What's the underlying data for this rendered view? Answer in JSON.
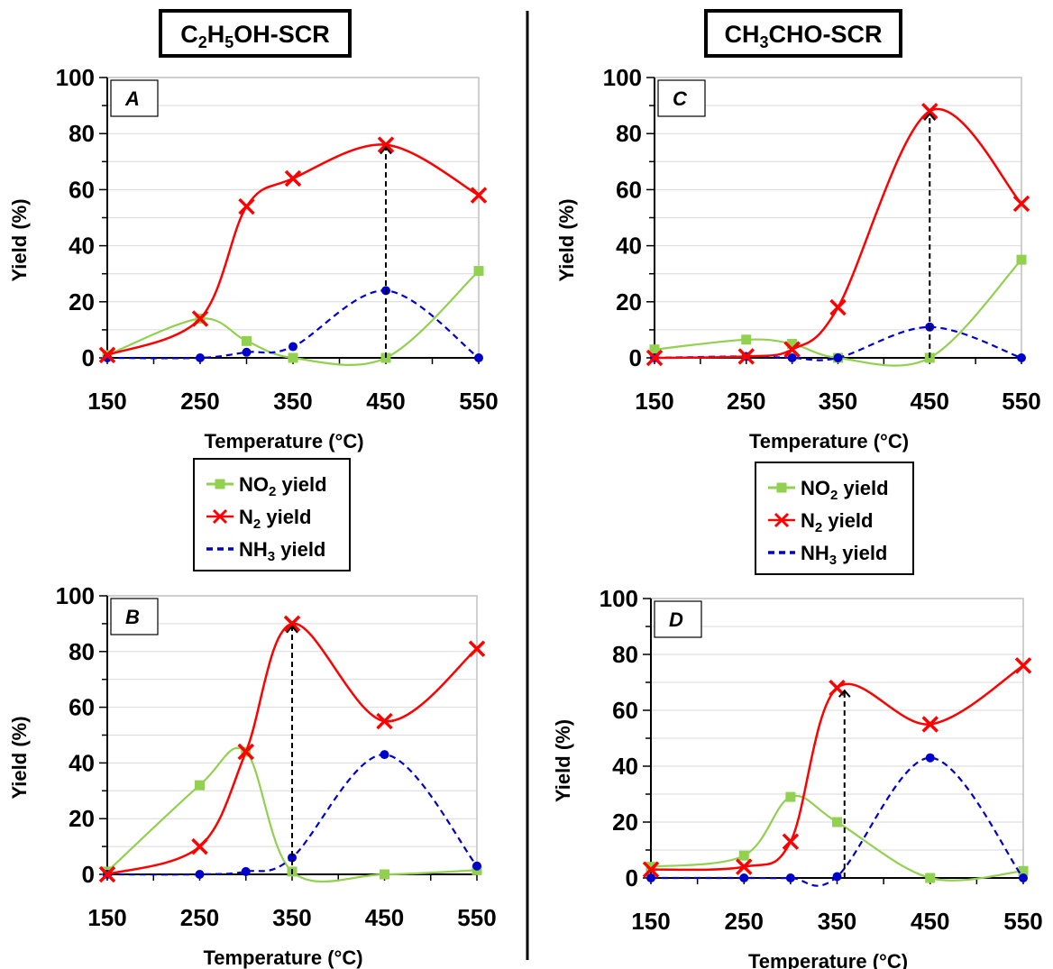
{
  "columns": [
    {
      "title_main": "C",
      "title_sub1": "2",
      "title_mid": "H",
      "title_sub2": "5",
      "title_end": "OH-SCR"
    },
    {
      "title_main": "CH",
      "title_sub1": "3",
      "title_mid": "CHO-SCR",
      "title_sub2": "",
      "title_end": ""
    }
  ],
  "legend": {
    "entries": [
      {
        "prefix": "NO",
        "sub": "2",
        "suffix": " yield",
        "color": "#92d050"
      },
      {
        "prefix": "N",
        "sub": "2",
        "suffix": " yield",
        "color": "#ff0000"
      },
      {
        "prefix": "NH",
        "sub": "3",
        "suffix": " yield",
        "color": "#0000cc"
      }
    ]
  },
  "colors": {
    "no2": "#92d050",
    "n2": "#ff0000",
    "nh3": "#0000cc",
    "arrow": "#000000"
  },
  "chart_data": [
    {
      "id": "A",
      "type": "line",
      "panel_label": "A",
      "xlabel": "Temperature (°C)",
      "ylabel": "Yield (%)",
      "x": [
        150,
        250,
        300,
        350,
        450,
        550
      ],
      "xticks": [
        150,
        250,
        350,
        450,
        550
      ],
      "yticks": [
        0,
        20,
        40,
        60,
        80,
        100
      ],
      "xlim": [
        150,
        550
      ],
      "ylim": [
        0,
        100
      ],
      "series": [
        {
          "name": "NO2 yield",
          "key": "no2",
          "values": [
            1,
            14,
            6,
            0,
            0,
            31
          ]
        },
        {
          "name": "N2 yield",
          "key": "n2",
          "values": [
            1,
            14,
            54,
            64,
            76,
            58
          ]
        },
        {
          "name": "NH3 yield",
          "key": "nh3",
          "values": [
            0,
            0,
            2,
            4,
            24,
            0
          ]
        }
      ],
      "arrow": {
        "x": 450,
        "from": 0,
        "to": 76
      }
    },
    {
      "id": "B",
      "type": "line",
      "panel_label": "B",
      "xlabel": "Temperature (°C)",
      "ylabel": "Yield (%)",
      "x": [
        150,
        250,
        300,
        350,
        450,
        550
      ],
      "xticks": [
        150,
        250,
        350,
        450,
        550
      ],
      "yticks": [
        0,
        20,
        40,
        60,
        80,
        100
      ],
      "xlim": [
        150,
        550
      ],
      "ylim": [
        0,
        100
      ],
      "series": [
        {
          "name": "NO2 yield",
          "key": "no2",
          "values": [
            1,
            32,
            44,
            1,
            0,
            1.5
          ]
        },
        {
          "name": "N2 yield",
          "key": "n2",
          "values": [
            0,
            10,
            44,
            90,
            55,
            81
          ]
        },
        {
          "name": "NH3 yield",
          "key": "nh3",
          "values": [
            0,
            0,
            1,
            6,
            43,
            3
          ]
        }
      ],
      "arrow": {
        "x": 350,
        "from": 0,
        "to": 90
      }
    },
    {
      "id": "C",
      "type": "line",
      "panel_label": "C",
      "xlabel": "Temperature (°C)",
      "ylabel": "Yield (%)",
      "x": [
        150,
        250,
        300,
        350,
        450,
        550
      ],
      "xticks": [
        150,
        250,
        350,
        450,
        550
      ],
      "yticks": [
        0,
        20,
        40,
        60,
        80,
        100
      ],
      "xlim": [
        150,
        550
      ],
      "ylim": [
        0,
        100
      ],
      "series": [
        {
          "name": "NO2 yield",
          "key": "no2",
          "values": [
            3,
            6.5,
            5,
            0,
            0,
            35
          ]
        },
        {
          "name": "N2 yield",
          "key": "n2",
          "values": [
            0,
            0.5,
            3,
            18,
            88,
            55
          ]
        },
        {
          "name": "NH3 yield",
          "key": "nh3",
          "values": [
            0,
            0.5,
            0,
            0,
            11,
            0
          ]
        }
      ],
      "arrow": {
        "x": 450,
        "from": 0,
        "to": 88
      }
    },
    {
      "id": "D",
      "type": "line",
      "panel_label": "D",
      "xlabel": "Temperature (°C)",
      "ylabel": "Yield (%)",
      "x": [
        150,
        250,
        300,
        350,
        450,
        550
      ],
      "xticks": [
        150,
        250,
        350,
        450,
        550
      ],
      "yticks": [
        0,
        20,
        40,
        60,
        80,
        100
      ],
      "xlim": [
        150,
        550
      ],
      "ylim": [
        0,
        100
      ],
      "series": [
        {
          "name": "NO2 yield",
          "key": "no2",
          "values": [
            4,
            8,
            29,
            20,
            0,
            2.5
          ]
        },
        {
          "name": "N2 yield",
          "key": "n2",
          "values": [
            3,
            4,
            13,
            68,
            55,
            76
          ]
        },
        {
          "name": "NH3 yield",
          "key": "nh3",
          "values": [
            0,
            0,
            0,
            0.5,
            43,
            0
          ]
        }
      ],
      "arrow": {
        "x": 358,
        "from": 0,
        "to": 68
      }
    }
  ]
}
